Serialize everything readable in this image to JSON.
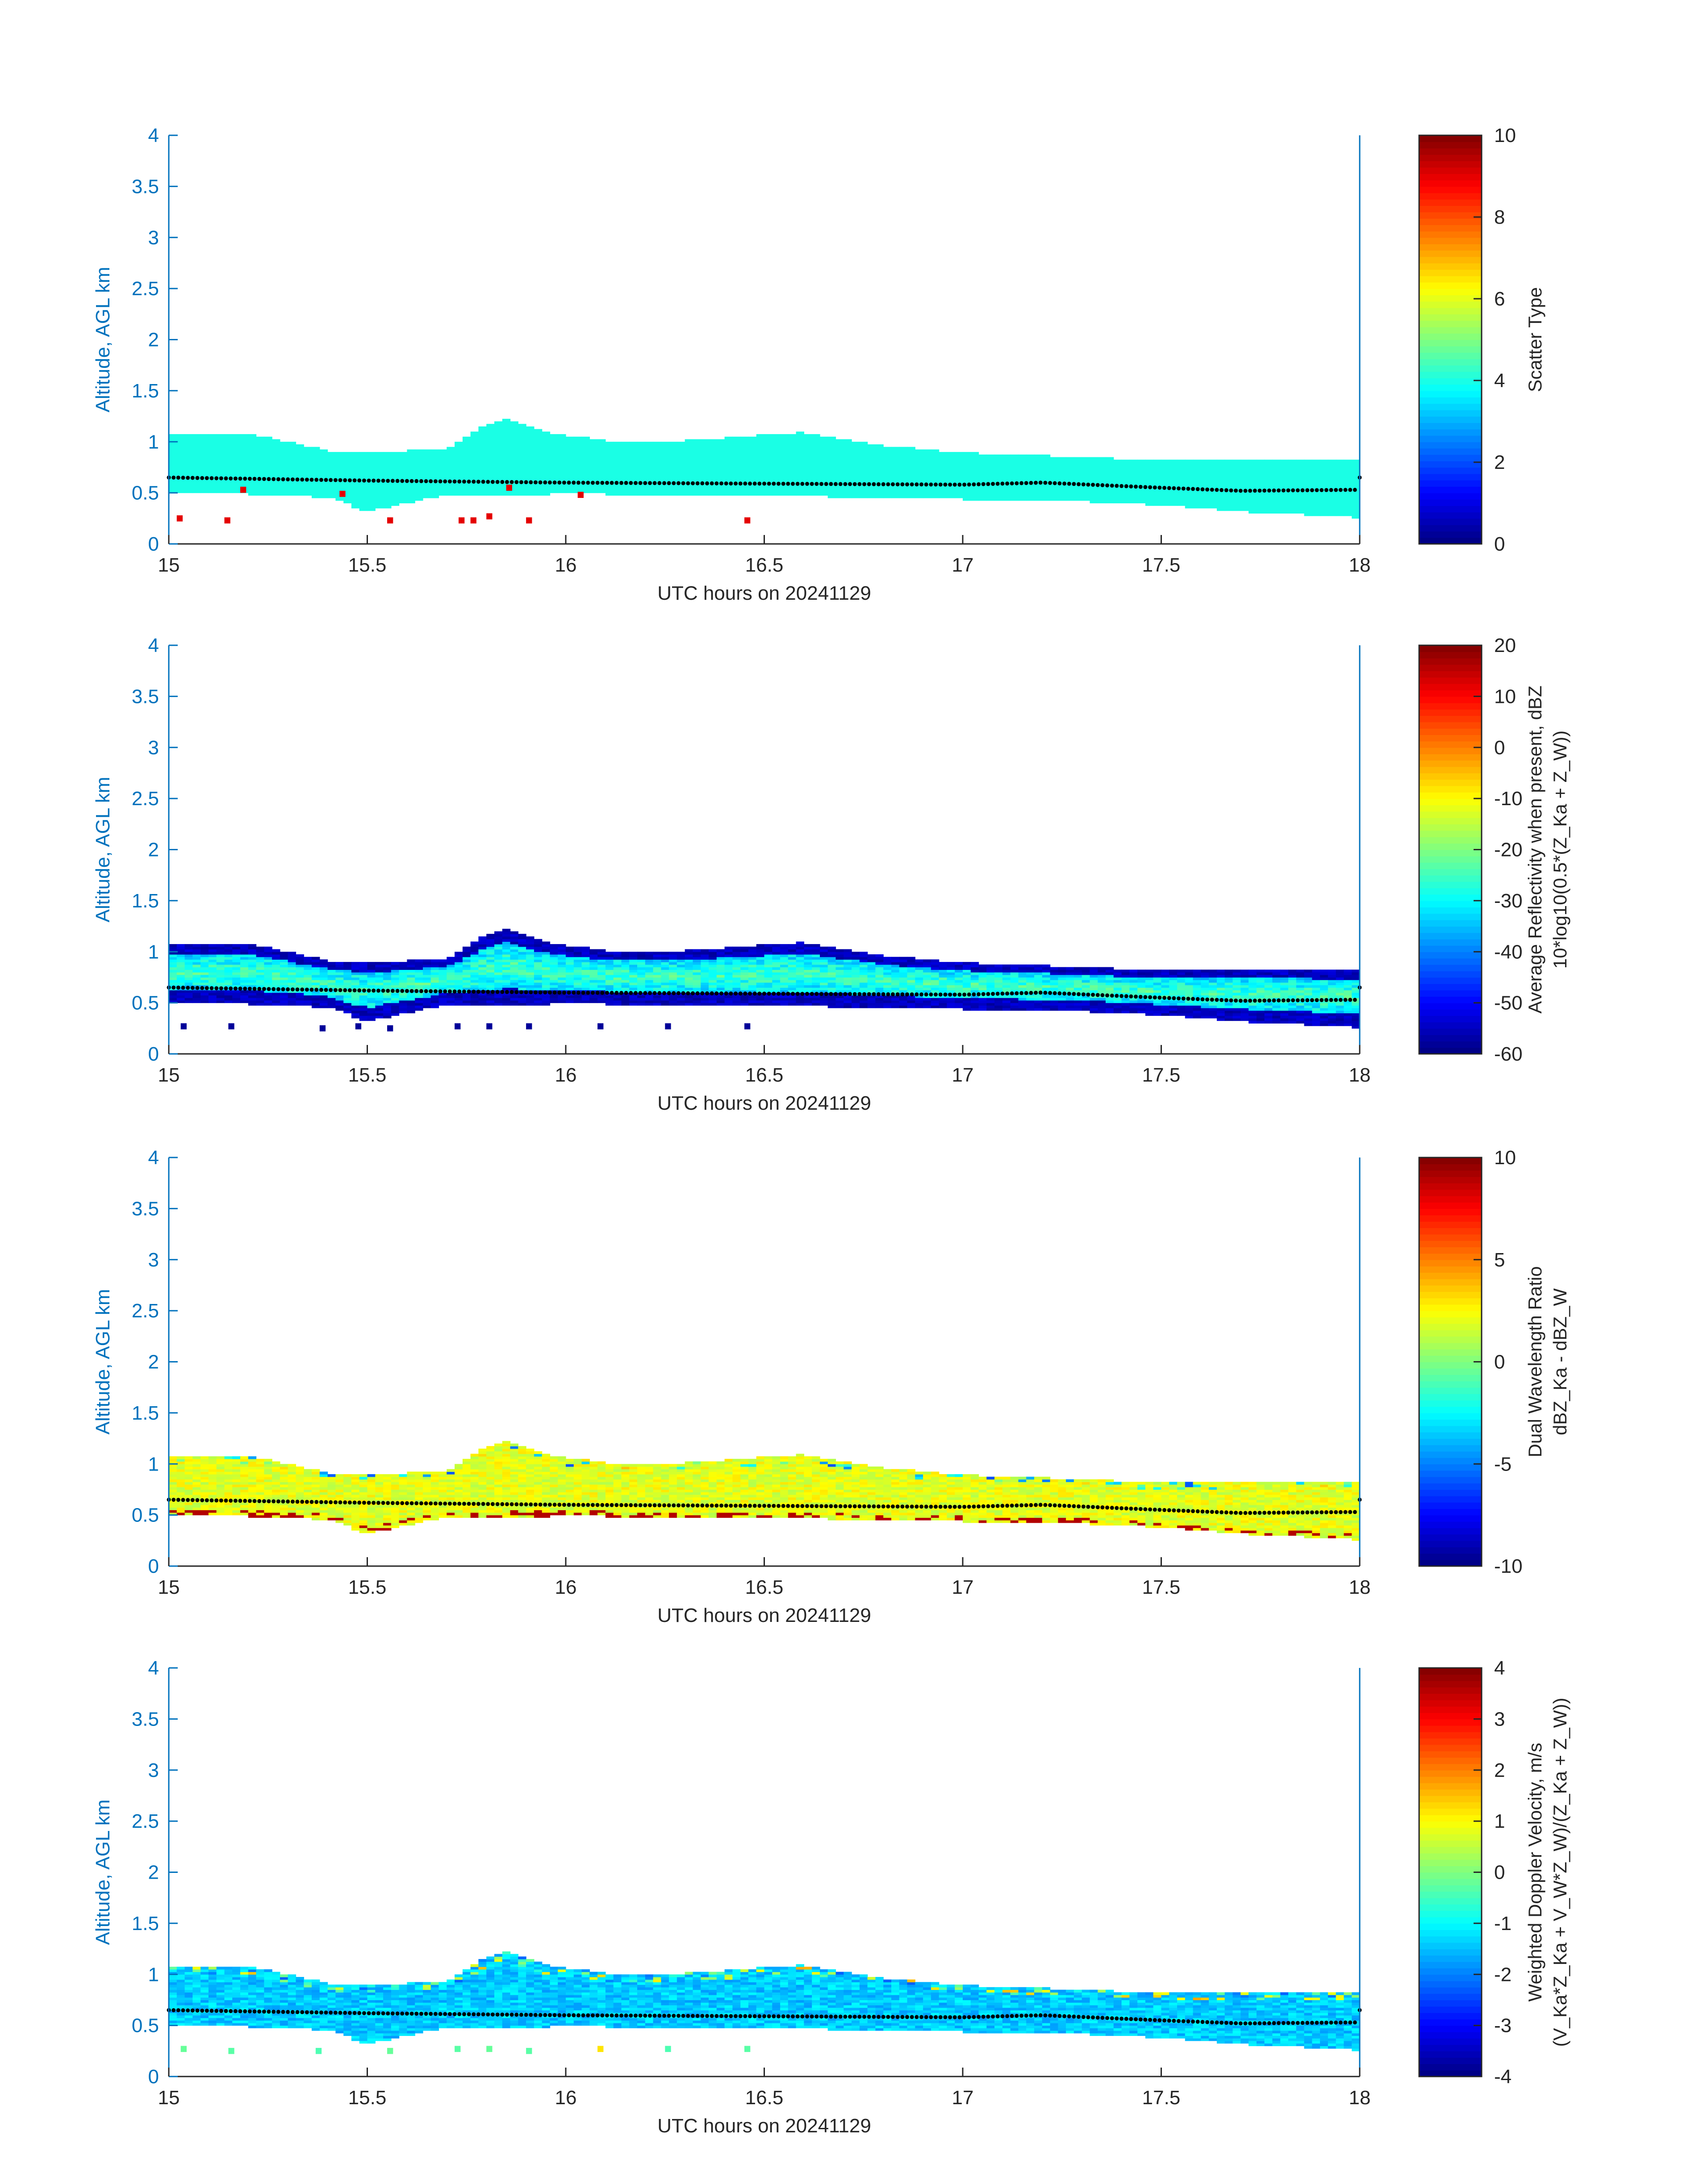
{
  "chart_data": [
    {
      "type": "heatmap",
      "title": "",
      "xlabel": "UTC hours on 20241129",
      "ylabel": "Altitude, AGL km",
      "xlim": [
        15,
        18
      ],
      "ylim": [
        0,
        4
      ],
      "xticks": [
        "15",
        "15.5",
        "16",
        "16.5",
        "17",
        "17.5",
        "18"
      ],
      "yticks": [
        "0",
        "0.5",
        "1",
        "1.5",
        "2",
        "2.5",
        "3",
        "3.5",
        "4"
      ],
      "colorbar_label_lines": [
        "Scatter Type"
      ],
      "clim": [
        0,
        10
      ],
      "cticks": [
        "0",
        "2",
        "4",
        "6",
        "8",
        "10"
      ],
      "colormap": "jet",
      "variable": "scatter_type",
      "profile": [
        {
          "x": 15.0,
          "base": 0.5,
          "top": 1.07
        },
        {
          "x": 15.2,
          "base": 0.5,
          "top": 1.07
        },
        {
          "x": 15.4,
          "base": 0.47,
          "top": 0.9
        },
        {
          "x": 15.5,
          "base": 0.33,
          "top": 0.88
        },
        {
          "x": 15.7,
          "base": 0.5,
          "top": 0.92
        },
        {
          "x": 15.8,
          "base": 0.48,
          "top": 1.15
        },
        {
          "x": 15.85,
          "base": 0.48,
          "top": 1.22
        },
        {
          "x": 15.95,
          "base": 0.5,
          "top": 1.08
        },
        {
          "x": 16.1,
          "base": 0.5,
          "top": 1.0
        },
        {
          "x": 16.3,
          "base": 0.48,
          "top": 1.0
        },
        {
          "x": 16.6,
          "base": 0.48,
          "top": 1.08
        },
        {
          "x": 16.8,
          "base": 0.46,
          "top": 0.95
        },
        {
          "x": 17.0,
          "base": 0.45,
          "top": 0.88
        },
        {
          "x": 17.3,
          "base": 0.43,
          "top": 0.84
        },
        {
          "x": 17.5,
          "base": 0.39,
          "top": 0.8
        },
        {
          "x": 17.7,
          "base": 0.33,
          "top": 0.82
        },
        {
          "x": 18.0,
          "base": 0.27,
          "top": 0.82
        }
      ],
      "dotted_line": [
        [
          15.0,
          0.65
        ],
        [
          15.5,
          0.62
        ],
        [
          16.0,
          0.6
        ],
        [
          16.5,
          0.59
        ],
        [
          17.0,
          0.58
        ],
        [
          17.2,
          0.6
        ],
        [
          17.5,
          0.55
        ],
        [
          17.7,
          0.52
        ],
        [
          18.0,
          0.53
        ]
      ],
      "cloud_value": 4,
      "speckles": [
        {
          "x": 15.02,
          "y": 0.22,
          "v": 9
        },
        {
          "x": 15.14,
          "y": 0.2,
          "v": 9
        },
        {
          "x": 15.18,
          "y": 0.5,
          "v": 9
        },
        {
          "x": 15.43,
          "y": 0.46,
          "v": 9
        },
        {
          "x": 15.55,
          "y": 0.2,
          "v": 9
        },
        {
          "x": 15.73,
          "y": 0.2,
          "v": 9
        },
        {
          "x": 15.76,
          "y": 0.2,
          "v": 9
        },
        {
          "x": 15.8,
          "y": 0.24,
          "v": 9
        },
        {
          "x": 15.9,
          "y": 0.2,
          "v": 9
        },
        {
          "x": 16.03,
          "y": 0.45,
          "v": 9
        },
        {
          "x": 16.45,
          "y": 0.2,
          "v": 9
        },
        {
          "x": 15.85,
          "y": 0.52,
          "v": 9
        }
      ]
    },
    {
      "type": "heatmap",
      "title": "",
      "xlabel": "UTC hours on 20241129",
      "ylabel": "Altitude, AGL km",
      "xlim": [
        15,
        18
      ],
      "ylim": [
        0,
        4
      ],
      "xticks": [
        "15",
        "15.5",
        "16",
        "16.5",
        "17",
        "17.5",
        "18"
      ],
      "yticks": [
        "0",
        "0.5",
        "1",
        "1.5",
        "2",
        "2.5",
        "3",
        "3.5",
        "4"
      ],
      "colorbar_label_lines": [
        "Average Reflectivity when present, dBZ",
        "10*log10(0.5*(Z_Ka + Z_W))"
      ],
      "clim": [
        -60,
        20
      ],
      "cticks": [
        "-60",
        "-50",
        "-40",
        "-30",
        "-20",
        "-10",
        "0",
        "10",
        "20"
      ],
      "colormap": "jet",
      "variable": "reflectivity_dBZ",
      "profile": [
        {
          "x": 15.0,
          "base": 0.5,
          "top": 1.07
        },
        {
          "x": 15.2,
          "base": 0.5,
          "top": 1.07
        },
        {
          "x": 15.4,
          "base": 0.47,
          "top": 0.9
        },
        {
          "x": 15.5,
          "base": 0.33,
          "top": 0.88
        },
        {
          "x": 15.7,
          "base": 0.5,
          "top": 0.92
        },
        {
          "x": 15.8,
          "base": 0.48,
          "top": 1.15
        },
        {
          "x": 15.85,
          "base": 0.48,
          "top": 1.22
        },
        {
          "x": 15.95,
          "base": 0.5,
          "top": 1.08
        },
        {
          "x": 16.1,
          "base": 0.5,
          "top": 1.0
        },
        {
          "x": 16.3,
          "base": 0.48,
          "top": 1.0
        },
        {
          "x": 16.6,
          "base": 0.48,
          "top": 1.08
        },
        {
          "x": 16.8,
          "base": 0.46,
          "top": 0.95
        },
        {
          "x": 17.0,
          "base": 0.45,
          "top": 0.88
        },
        {
          "x": 17.3,
          "base": 0.43,
          "top": 0.84
        },
        {
          "x": 17.5,
          "base": 0.39,
          "top": 0.8
        },
        {
          "x": 17.7,
          "base": 0.33,
          "top": 0.82
        },
        {
          "x": 18.0,
          "base": 0.27,
          "top": 0.82
        }
      ],
      "dotted_line": [
        [
          15.0,
          0.65
        ],
        [
          15.5,
          0.62
        ],
        [
          16.0,
          0.6
        ],
        [
          16.5,
          0.59
        ],
        [
          17.0,
          0.58
        ],
        [
          17.2,
          0.6
        ],
        [
          17.5,
          0.55
        ],
        [
          17.7,
          0.52
        ],
        [
          18.0,
          0.53
        ]
      ],
      "edge_value": -55,
      "core_value": -25,
      "speckles": [
        {
          "x": 15.03,
          "y": 0.24,
          "v": -58
        },
        {
          "x": 15.15,
          "y": 0.24,
          "v": -58
        },
        {
          "x": 15.38,
          "y": 0.22,
          "v": -58
        },
        {
          "x": 15.47,
          "y": 0.24,
          "v": -58
        },
        {
          "x": 15.55,
          "y": 0.22,
          "v": -58
        },
        {
          "x": 15.72,
          "y": 0.24,
          "v": -58
        },
        {
          "x": 15.8,
          "y": 0.24,
          "v": -58
        },
        {
          "x": 15.9,
          "y": 0.24,
          "v": -58
        },
        {
          "x": 16.08,
          "y": 0.24,
          "v": -58
        },
        {
          "x": 16.25,
          "y": 0.24,
          "v": -58
        },
        {
          "x": 16.45,
          "y": 0.24,
          "v": -58
        }
      ]
    },
    {
      "type": "heatmap",
      "title": "",
      "xlabel": "UTC hours on 20241129",
      "ylabel": "Altitude, AGL km",
      "xlim": [
        15,
        18
      ],
      "ylim": [
        0,
        4
      ],
      "xticks": [
        "15",
        "15.5",
        "16",
        "16.5",
        "17",
        "17.5",
        "18"
      ],
      "yticks": [
        "0",
        "0.5",
        "1",
        "1.5",
        "2",
        "2.5",
        "3",
        "3.5",
        "4"
      ],
      "colorbar_label_lines": [
        "Dual Wavelength Ratio",
        "dBZ_Ka - dBZ_W"
      ],
      "clim": [
        -10,
        10
      ],
      "cticks": [
        "-10",
        "-5",
        "0",
        "5",
        "10"
      ],
      "colormap": "jet",
      "variable": "dual_wavelength_ratio",
      "profile": [
        {
          "x": 15.0,
          "base": 0.5,
          "top": 1.07
        },
        {
          "x": 15.2,
          "base": 0.5,
          "top": 1.07
        },
        {
          "x": 15.4,
          "base": 0.47,
          "top": 0.9
        },
        {
          "x": 15.5,
          "base": 0.33,
          "top": 0.88
        },
        {
          "x": 15.7,
          "base": 0.5,
          "top": 0.92
        },
        {
          "x": 15.8,
          "base": 0.48,
          "top": 1.15
        },
        {
          "x": 15.85,
          "base": 0.48,
          "top": 1.22
        },
        {
          "x": 15.95,
          "base": 0.5,
          "top": 1.08
        },
        {
          "x": 16.1,
          "base": 0.5,
          "top": 1.0
        },
        {
          "x": 16.3,
          "base": 0.48,
          "top": 1.0
        },
        {
          "x": 16.6,
          "base": 0.48,
          "top": 1.08
        },
        {
          "x": 16.8,
          "base": 0.46,
          "top": 0.95
        },
        {
          "x": 17.0,
          "base": 0.45,
          "top": 0.88
        },
        {
          "x": 17.3,
          "base": 0.43,
          "top": 0.84
        },
        {
          "x": 17.5,
          "base": 0.39,
          "top": 0.8
        },
        {
          "x": 17.7,
          "base": 0.33,
          "top": 0.82
        },
        {
          "x": 18.0,
          "base": 0.27,
          "top": 0.82
        }
      ],
      "dotted_line": [
        [
          15.0,
          0.65
        ],
        [
          15.5,
          0.62
        ],
        [
          16.0,
          0.6
        ],
        [
          16.5,
          0.59
        ],
        [
          17.0,
          0.58
        ],
        [
          17.2,
          0.6
        ],
        [
          17.5,
          0.55
        ],
        [
          17.7,
          0.52
        ],
        [
          18.0,
          0.53
        ]
      ],
      "core_value": 2,
      "edge_value": -1,
      "base_value": 9
    },
    {
      "type": "heatmap",
      "title": "",
      "xlabel": "UTC hours on 20241129",
      "ylabel": "Altitude, AGL km",
      "xlim": [
        15,
        18
      ],
      "ylim": [
        0,
        4
      ],
      "xticks": [
        "15",
        "15.5",
        "16",
        "16.5",
        "17",
        "17.5",
        "18"
      ],
      "yticks": [
        "0",
        "0.5",
        "1",
        "1.5",
        "2",
        "2.5",
        "3",
        "3.5",
        "4"
      ],
      "colorbar_label_lines": [
        "Weighted Doppler Velocity, m/s",
        "(V_Ka*Z_Ka + V_W*Z_W)/(Z_Ka + Z_W))"
      ],
      "clim": [
        -4,
        4
      ],
      "cticks": [
        "-4",
        "-3",
        "-2",
        "-1",
        "0",
        "1",
        "2",
        "3",
        "4"
      ],
      "colormap": "jet",
      "variable": "weighted_doppler_velocity",
      "profile": [
        {
          "x": 15.0,
          "base": 0.5,
          "top": 1.07
        },
        {
          "x": 15.2,
          "base": 0.5,
          "top": 1.07
        },
        {
          "x": 15.4,
          "base": 0.47,
          "top": 0.9
        },
        {
          "x": 15.5,
          "base": 0.33,
          "top": 0.88
        },
        {
          "x": 15.7,
          "base": 0.5,
          "top": 0.92
        },
        {
          "x": 15.8,
          "base": 0.48,
          "top": 1.15
        },
        {
          "x": 15.85,
          "base": 0.48,
          "top": 1.22
        },
        {
          "x": 15.95,
          "base": 0.5,
          "top": 1.08
        },
        {
          "x": 16.1,
          "base": 0.5,
          "top": 1.0
        },
        {
          "x": 16.3,
          "base": 0.48,
          "top": 1.0
        },
        {
          "x": 16.6,
          "base": 0.48,
          "top": 1.08
        },
        {
          "x": 16.8,
          "base": 0.46,
          "top": 0.95
        },
        {
          "x": 17.0,
          "base": 0.45,
          "top": 0.88
        },
        {
          "x": 17.3,
          "base": 0.43,
          "top": 0.84
        },
        {
          "x": 17.5,
          "base": 0.39,
          "top": 0.8
        },
        {
          "x": 17.7,
          "base": 0.33,
          "top": 0.82
        },
        {
          "x": 18.0,
          "base": 0.27,
          "top": 0.82
        }
      ],
      "dotted_line": [
        [
          15.0,
          0.65
        ],
        [
          15.5,
          0.62
        ],
        [
          16.0,
          0.6
        ],
        [
          16.5,
          0.59
        ],
        [
          17.0,
          0.58
        ],
        [
          17.2,
          0.6
        ],
        [
          17.5,
          0.55
        ],
        [
          17.7,
          0.52
        ],
        [
          18.0,
          0.53
        ]
      ],
      "core_value": -1.4,
      "top_value": -0.3,
      "speckles": [
        {
          "x": 15.03,
          "y": 0.24,
          "v": -0.2
        },
        {
          "x": 15.15,
          "y": 0.22,
          "v": -0.3
        },
        {
          "x": 15.37,
          "y": 0.22,
          "v": -0.4
        },
        {
          "x": 15.55,
          "y": 0.22,
          "v": -0.2
        },
        {
          "x": 15.72,
          "y": 0.24,
          "v": -0.3
        },
        {
          "x": 15.8,
          "y": 0.24,
          "v": -0.2
        },
        {
          "x": 15.9,
          "y": 0.22,
          "v": -0.3
        },
        {
          "x": 16.08,
          "y": 0.24,
          "v": 1.2
        },
        {
          "x": 16.25,
          "y": 0.24,
          "v": -0.4
        },
        {
          "x": 16.45,
          "y": 0.24,
          "v": -0.3
        }
      ]
    }
  ],
  "colors": {
    "axis_text": "#0072BD",
    "axis_line": "#0072BD",
    "dotted_line": "#000000",
    "background": "#FFFFFF"
  }
}
